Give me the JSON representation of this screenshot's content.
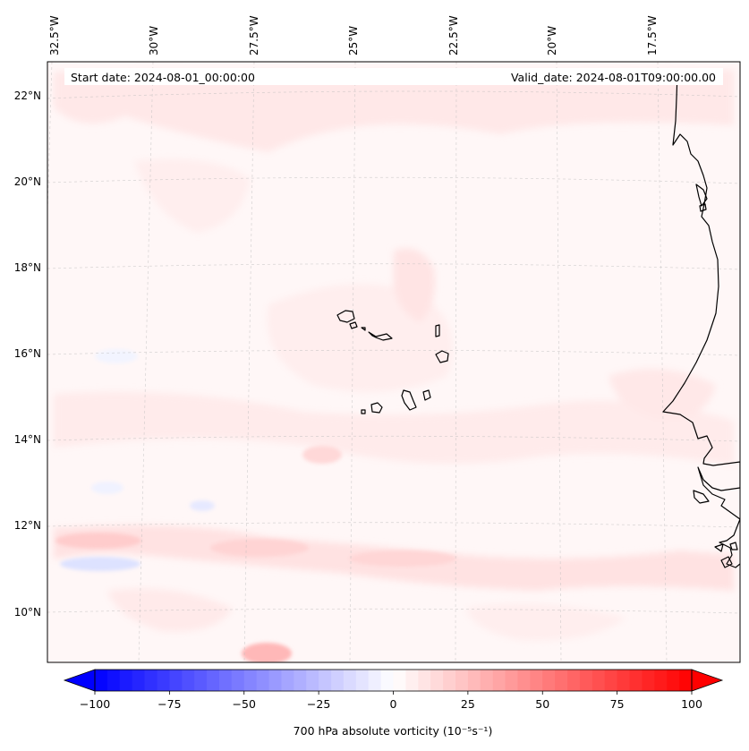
{
  "map": {
    "start_label": "Start date: 2024-08-01_00:00:00",
    "valid_label": "Valid_date: 2024-08-01T09:00:00.00",
    "lon_labels": [
      "32.5°W",
      "30°W",
      "27.5°W",
      "25°W",
      "22.5°W",
      "20°W",
      "17.5°W"
    ],
    "lat_labels": [
      "22°N",
      "20°N",
      "18°N",
      "16°N",
      "14°N",
      "12°N",
      "10°N"
    ],
    "lon_range_deg": [
      -33.2,
      -15.5
    ],
    "lat_range_deg": [
      8.8,
      22.8
    ],
    "gridlines": true,
    "coastline_color": "#000000",
    "gridline_color": "#bbbbbb",
    "field_background": "#fff7f7"
  },
  "colorbar": {
    "label": "700 hPa absolute vorticity (10⁻⁵s⁻¹)",
    "ticks": [
      "−100",
      "−75",
      "−50",
      "−25",
      "0",
      "25",
      "50",
      "75",
      "100"
    ],
    "range": [
      -100,
      100
    ],
    "levels": 48,
    "cmap": "bwr",
    "low_color": "#0000ff",
    "mid_color": "#ffffff",
    "high_color": "#ff0000",
    "extend": "both"
  }
}
